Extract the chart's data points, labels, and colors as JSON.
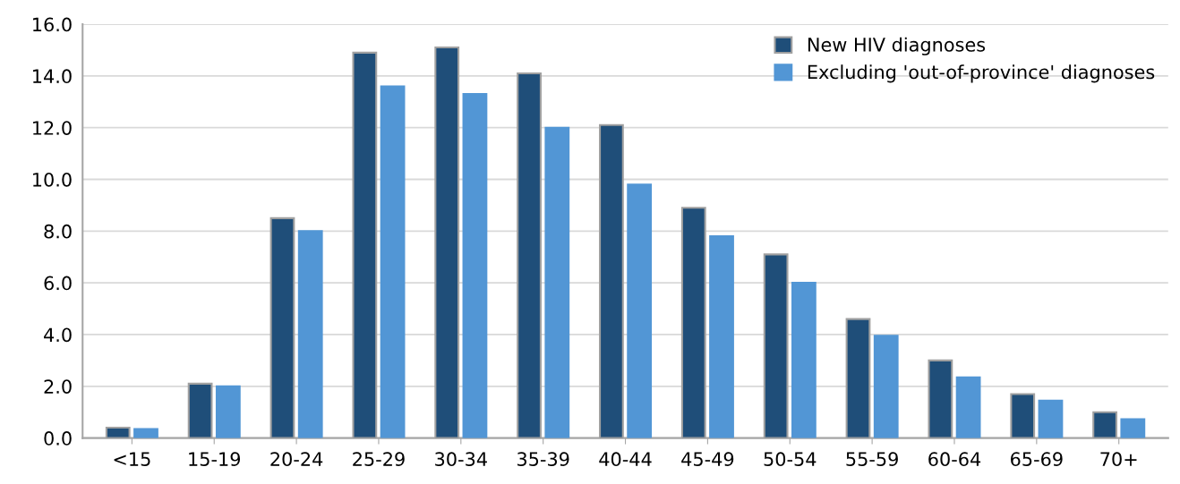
{
  "chart_data": {
    "type": "bar",
    "categories": [
      "<15",
      "15-19",
      "20-24",
      "25-29",
      "30-34",
      "35-39",
      "40-44",
      "45-49",
      "50-54",
      "55-59",
      "60-64",
      "65-69",
      "70+"
    ],
    "series": [
      {
        "name": "New HIV diagnoses",
        "color": "#1f4e79",
        "values": [
          0.4,
          2.1,
          8.5,
          14.9,
          15.1,
          14.1,
          12.1,
          8.9,
          7.1,
          4.6,
          3.0,
          1.7,
          1.0
        ]
      },
      {
        "name": "Excluding 'out-of-province' diagnoses",
        "color": "#5296d5",
        "values": [
          0.35,
          2.0,
          8.0,
          13.6,
          13.3,
          12.0,
          9.8,
          7.8,
          6.0,
          3.95,
          2.35,
          1.45,
          0.73
        ]
      }
    ],
    "ylim": [
      0,
      16
    ],
    "yticks": [
      {
        "value": 0,
        "label": "0.0"
      },
      {
        "value": 2,
        "label": "2.0"
      },
      {
        "value": 4,
        "label": "4.0"
      },
      {
        "value": 6,
        "label": "6.0"
      },
      {
        "value": 8,
        "label": "8.0"
      },
      {
        "value": 10,
        "label": "10.0"
      },
      {
        "value": 12,
        "label": "12.0"
      },
      {
        "value": 14,
        "label": "14.0"
      },
      {
        "value": 16,
        "label": "16.0"
      }
    ],
    "grid": "y",
    "legend": "top right"
  }
}
